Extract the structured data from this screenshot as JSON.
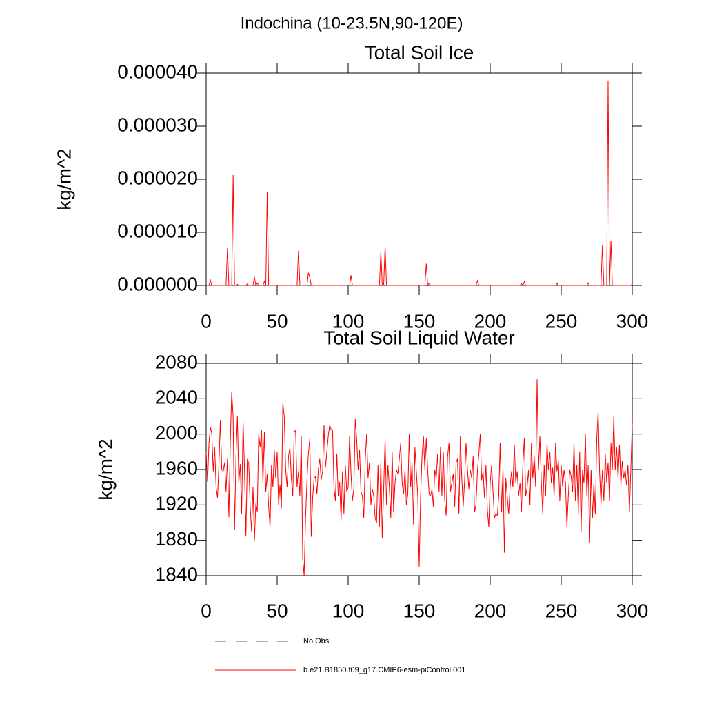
{
  "suptitle": "Indochina (10-23.5N,90-120E)",
  "chart_data": [
    {
      "type": "line",
      "title": "Total Soil Ice",
      "ylabel": "kg/m^2",
      "xlim": [
        0,
        300
      ],
      "xticks": [
        0,
        50,
        100,
        150,
        200,
        250,
        300
      ],
      "ylim": [
        0,
        4e-05
      ],
      "yticks": [
        {
          "value": 0,
          "label": "0.000000"
        },
        {
          "value": 1e-05,
          "label": "0.000010"
        },
        {
          "value": 2e-05,
          "label": "0.000020"
        },
        {
          "value": 3e-05,
          "label": "0.000030"
        },
        {
          "value": 4e-05,
          "label": "0.000040"
        }
      ],
      "x": [
        0,
        1,
        2,
        3,
        4,
        5,
        6,
        7,
        8,
        9,
        10,
        11,
        12,
        13,
        14,
        15,
        16,
        17,
        18,
        19,
        20,
        21,
        22,
        23,
        24,
        25,
        26,
        27,
        28,
        29,
        30,
        31,
        32,
        33,
        34,
        35,
        36,
        37,
        38,
        39,
        40,
        41,
        42,
        43,
        44,
        45,
        46,
        47,
        48,
        49,
        50,
        51,
        52,
        53,
        54,
        55,
        56,
        57,
        58,
        59,
        60,
        61,
        62,
        63,
        64,
        65,
        66,
        67,
        68,
        69,
        70,
        71,
        72,
        73,
        74,
        75,
        76,
        77,
        78,
        79,
        80,
        81,
        82,
        83,
        84,
        85,
        86,
        87,
        88,
        89,
        90,
        91,
        92,
        93,
        94,
        95,
        96,
        97,
        98,
        99,
        100,
        101,
        102,
        103,
        104,
        105,
        106,
        107,
        108,
        109,
        110,
        111,
        112,
        113,
        114,
        115,
        116,
        117,
        118,
        119,
        120,
        121,
        122,
        123,
        124,
        125,
        126,
        127,
        128,
        129,
        130,
        131,
        132,
        133,
        134,
        135,
        136,
        137,
        138,
        139,
        140,
        141,
        142,
        143,
        144,
        145,
        146,
        147,
        148,
        149,
        150,
        151,
        152,
        153,
        154,
        155,
        156,
        157,
        158,
        159,
        160,
        161,
        162,
        163,
        164,
        165,
        166,
        167,
        168,
        169,
        170,
        171,
        172,
        173,
        174,
        175,
        176,
        177,
        178,
        179,
        180,
        181,
        182,
        183,
        184,
        185,
        186,
        187,
        188,
        189,
        190,
        191,
        192,
        193,
        194,
        195,
        196,
        197,
        198,
        199,
        200,
        201,
        202,
        203,
        204,
        205,
        206,
        207,
        208,
        209,
        210,
        211,
        212,
        213,
        214,
        215,
        216,
        217,
        218,
        219,
        220,
        221,
        222,
        223,
        224,
        225,
        226,
        227,
        228,
        229,
        230,
        231,
        232,
        233,
        234,
        235,
        236,
        237,
        238,
        239,
        240,
        241,
        242,
        243,
        244,
        245,
        246,
        247,
        248,
        249,
        250,
        251,
        252,
        253,
        254,
        255,
        256,
        257,
        258,
        259,
        260,
        261,
        262,
        263,
        264,
        265,
        266,
        267,
        268,
        269,
        270,
        271,
        272,
        273,
        274,
        275,
        276,
        277,
        278,
        279,
        280,
        281,
        282,
        283,
        284,
        285,
        286,
        287,
        288,
        289,
        290,
        291,
        292,
        293,
        294,
        295,
        296,
        297,
        298,
        299,
        300
      ],
      "series": [
        {
          "color": "#ff0000",
          "values": [
            0,
            0,
            0,
            1e-06,
            0,
            0,
            0,
            0,
            0,
            0,
            0,
            0,
            0,
            0,
            0,
            7e-06,
            0,
            0,
            0,
            2.08e-05,
            0,
            0,
            2e-07,
            0,
            0,
            0,
            0,
            0,
            0,
            3e-07,
            0,
            0,
            0,
            0,
            1.6e-06,
            0,
            5e-07,
            0,
            0,
            0,
            0,
            8e-07,
            0,
            1.76e-05,
            0,
            0,
            0,
            0,
            0,
            0,
            0,
            0,
            0,
            0,
            0,
            0,
            0,
            0,
            0,
            0,
            0,
            0,
            0,
            0,
            0,
            6.5e-06,
            0,
            0,
            0,
            0,
            0,
            0,
            2.4e-06,
            1.5e-06,
            0,
            0,
            0,
            0,
            0,
            0,
            0,
            0,
            0,
            0,
            0,
            0,
            0,
            0,
            0,
            0,
            0,
            0,
            0,
            0,
            0,
            0,
            0,
            0,
            0,
            0,
            0,
            0,
            1.9e-06,
            0,
            0,
            0,
            0,
            0,
            0,
            0,
            0,
            0,
            0,
            0,
            0,
            0,
            0,
            0,
            0,
            0,
            0,
            0,
            0,
            6.4e-06,
            0,
            0,
            7.4e-06,
            0,
            0,
            0,
            0,
            0,
            0,
            0,
            0,
            0,
            0,
            0,
            0,
            0,
            0,
            0,
            0,
            0,
            0,
            0,
            0,
            0,
            0,
            0,
            0,
            0,
            0,
            0,
            0,
            4.1e-06,
            0,
            4e-07,
            0,
            0,
            0,
            0,
            0,
            0,
            0,
            0,
            0,
            0,
            0,
            0,
            0,
            0,
            0,
            0,
            0,
            0,
            0,
            0,
            0,
            0,
            0,
            0,
            0,
            0,
            0,
            0,
            0,
            0,
            0,
            0,
            0,
            9e-07,
            0,
            0,
            0,
            0,
            0,
            0,
            0,
            0,
            0,
            0,
            0,
            0,
            0,
            0,
            0,
            0,
            0,
            0,
            0,
            0,
            0,
            0,
            0,
            0,
            0,
            0,
            0,
            0,
            0,
            0,
            4e-07,
            0,
            7e-07,
            0,
            0,
            0,
            0,
            0,
            0,
            0,
            0,
            0,
            0,
            0,
            0,
            0,
            0,
            0,
            0,
            0,
            0,
            0,
            0,
            0,
            0,
            4e-07,
            0,
            0,
            0,
            0,
            0,
            0,
            0,
            0,
            0,
            0,
            0,
            0,
            0,
            0,
            0,
            0,
            0,
            0,
            0,
            0,
            0,
            5e-07,
            0,
            0,
            0,
            0,
            0,
            0,
            0,
            0,
            0,
            7.6e-06,
            0,
            0,
            0,
            3.86e-05,
            0,
            8.4e-06,
            0,
            0,
            0,
            0,
            0,
            0,
            0,
            0,
            0,
            0,
            0,
            0,
            0,
            0,
            3e-07
          ]
        }
      ]
    },
    {
      "type": "line",
      "title": "Total Soil Liquid Water",
      "ylabel": "kg/m^2",
      "xlim": [
        0,
        300
      ],
      "xticks": [
        0,
        50,
        100,
        150,
        200,
        250,
        300
      ],
      "ylim": [
        1840,
        2080
      ],
      "yticks": [
        1840,
        1880,
        1920,
        1960,
        2000,
        2040,
        2080
      ],
      "x": [
        0,
        1,
        2,
        3,
        4,
        5,
        6,
        7,
        8,
        9,
        10,
        11,
        12,
        13,
        14,
        15,
        16,
        17,
        18,
        19,
        20,
        21,
        22,
        23,
        24,
        25,
        26,
        27,
        28,
        29,
        30,
        31,
        32,
        33,
        34,
        35,
        36,
        37,
        38,
        39,
        40,
        41,
        42,
        43,
        44,
        45,
        46,
        47,
        48,
        49,
        50,
        51,
        52,
        53,
        54,
        55,
        56,
        57,
        58,
        59,
        60,
        61,
        62,
        63,
        64,
        65,
        66,
        67,
        68,
        69,
        70,
        71,
        72,
        73,
        74,
        75,
        76,
        77,
        78,
        79,
        80,
        81,
        82,
        83,
        84,
        85,
        86,
        87,
        88,
        89,
        90,
        91,
        92,
        93,
        94,
        95,
        96,
        97,
        98,
        99,
        100,
        101,
        102,
        103,
        104,
        105,
        106,
        107,
        108,
        109,
        110,
        111,
        112,
        113,
        114,
        115,
        116,
        117,
        118,
        119,
        120,
        121,
        122,
        123,
        124,
        125,
        126,
        127,
        128,
        129,
        130,
        131,
        132,
        133,
        134,
        135,
        136,
        137,
        138,
        139,
        140,
        141,
        142,
        143,
        144,
        145,
        146,
        147,
        148,
        149,
        150,
        151,
        152,
        153,
        154,
        155,
        156,
        157,
        158,
        159,
        160,
        161,
        162,
        163,
        164,
        165,
        166,
        167,
        168,
        169,
        170,
        171,
        172,
        173,
        174,
        175,
        176,
        177,
        178,
        179,
        180,
        181,
        182,
        183,
        184,
        185,
        186,
        187,
        188,
        189,
        190,
        191,
        192,
        193,
        194,
        195,
        196,
        197,
        198,
        199,
        200,
        201,
        202,
        203,
        204,
        205,
        206,
        207,
        208,
        209,
        210,
        211,
        212,
        213,
        214,
        215,
        216,
        217,
        218,
        219,
        220,
        221,
        222,
        223,
        224,
        225,
        226,
        227,
        228,
        229,
        230,
        231,
        232,
        233,
        234,
        235,
        236,
        237,
        238,
        239,
        240,
        241,
        242,
        243,
        244,
        245,
        246,
        247,
        248,
        249,
        250,
        251,
        252,
        253,
        254,
        255,
        256,
        257,
        258,
        259,
        260,
        261,
        262,
        263,
        264,
        265,
        266,
        267,
        268,
        269,
        270,
        271,
        272,
        273,
        274,
        275,
        276,
        277,
        278,
        279,
        280,
        281,
        282,
        283,
        284,
        285,
        286,
        287,
        288,
        289,
        290,
        291,
        292,
        293,
        294,
        295,
        296,
        297,
        298,
        299,
        300
      ],
      "series": [
        {
          "color": "#ff0000",
          "values": [
            1980,
            1946,
            1990,
            2008,
            2000,
            1958,
            1985,
            1940,
            1928,
            1965,
            2016,
            1960,
            1958,
            1968,
            1935,
            1972,
            1906,
            1990,
            2048,
            2020,
            1892,
            1975,
            2020,
            1945,
            1966,
            1910,
            2015,
            1960,
            1885,
            1972,
            1967,
            1918,
            1890,
            1940,
            1880,
            1922,
            1912,
            2000,
            1985,
            2005,
            1945,
            2002,
            1935,
            1955,
            1918,
            1895,
            1965,
            1940,
            1982,
            1950,
            1980,
            1920,
            1943,
            1916,
            2035,
            2020,
            1960,
            1940,
            1975,
            1985,
            1950,
            1930,
            2003,
            2004,
            1940,
            1958,
            1930,
            1998,
            1860,
            1840,
            1905,
            1948,
            1978,
            1995,
            1884,
            1928,
            1950,
            1952,
            1932,
            1960,
            1972,
            1948,
            1958,
            2010,
            1962,
            1980,
            1998,
            2010,
            2005,
            2005,
            1940,
            1925,
            1978,
            1930,
            1946,
            1902,
            1958,
            1910,
            1965,
            1935,
            1940,
            1998,
            1955,
            1925,
            1938,
            2017,
            1994,
            1960,
            1982,
            1935,
            1930,
            1905,
            1970,
            2000,
            1950,
            1968,
            1920,
            1938,
            1930,
            1905,
            1900,
            1965,
            1895,
            1970,
            1882,
            1938,
            1995,
            1920,
            1965,
            1940,
            1905,
            1980,
            1912,
            1945,
            1960,
            1955,
            1972,
            1990,
            1945,
            1932,
            1960,
            1920,
            1932,
            2000,
            1940,
            1968,
            1898,
            1985,
            1958,
            1930,
            1850,
            1930,
            1975,
            1998,
            1960,
            1995,
            1960,
            1932,
            1930,
            1938,
            1918,
            1960,
            1950,
            1978,
            1935,
            1985,
            1930,
            1980,
            1925,
            1908,
            1975,
            1990,
            1935,
            1945,
            1955,
            1918,
            1968,
            1972,
            1910,
            1998,
            1950,
            1918,
            1948,
            1990,
            1960,
            1938,
            1960,
            1950,
            1975,
            1912,
            1920,
            1958,
            1978,
            2000,
            1948,
            1958,
            1928,
            1965,
            1915,
            1895,
            1945,
            1965,
            1935,
            1905,
            1910,
            1908,
            1930,
            1990,
            1912,
            1962,
            1866,
            1950,
            1930,
            1910,
            1940,
            1958,
            1940,
            1988,
            1945,
            1958,
            1930,
            1945,
            1912,
            1965,
            1995,
            1930,
            1940,
            1960,
            1920,
            1990,
            1950,
            1975,
            1940,
            2062,
            1960,
            1998,
            1945,
            1910,
            1965,
            1930,
            1990,
            1960,
            1980,
            1945,
            1962,
            1930,
            1990,
            1958,
            1970,
            1925,
            1965,
            1940,
            1960,
            1945,
            1895,
            1930,
            1960,
            1952,
            1935,
            1990,
            1925,
            1965,
            1910,
            1980,
            1890,
            1960,
            1945,
            2000,
            1930,
            1965,
            1877,
            1960,
            1905,
            1945,
            1910,
            1995,
            2025,
            1958,
            1920,
            1960,
            1925,
            1978,
            1945,
            1968,
            1925,
            1990,
            1960,
            2020,
            1960,
            1985,
            1950,
            1988,
            1942,
            1970,
            1950,
            1960,
            1942,
            1965,
            1912,
            1960,
            2012
          ]
        }
      ]
    }
  ],
  "legend": [
    {
      "label": "No Obs",
      "color": "#4a5a9a",
      "style": "dashed"
    },
    {
      "label": "b.e21.B1850.f09_g17.CMIP6-esm-piControl.001",
      "color": "#ff0000",
      "style": "solid"
    }
  ]
}
